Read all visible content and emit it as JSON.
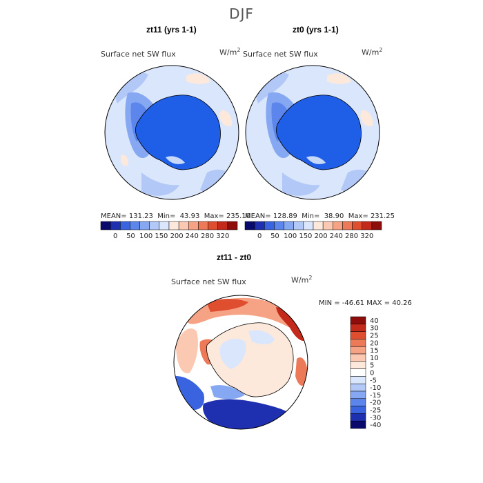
{
  "suptitle": "DJF",
  "panels": [
    {
      "title": "zt11 (yrs 1-1)",
      "variable": "Surface net SW flux",
      "units": "W/m",
      "units_sup": "2",
      "mean_label": "MEAN=",
      "mean": "131.23",
      "min_label": "Min=",
      "min": "43.93",
      "max_label": "Max=",
      "max": "235.10"
    },
    {
      "title": "zt0 (yrs 1-1)",
      "variable": "Surface net SW flux",
      "units": "W/m",
      "units_sup": "2",
      "mean_label": "MEAN=",
      "mean": "128.89",
      "min_label": "Min=",
      "min": "38.90",
      "max_label": "Max=",
      "max": "231.25"
    },
    {
      "title": "zt11 - zt0",
      "variable": "Surface net SW flux",
      "units": "W/m",
      "units_sup": "2",
      "minmax_text": "MIN = -46.61 MAX =  40.26"
    }
  ],
  "chart_data": [
    {
      "type": "heatmap",
      "title": "zt11 (yrs 1-1)",
      "projection": "south polar stereographic",
      "variable": "Surface net SW flux",
      "units": "W/m^2",
      "stats": {
        "mean": 131.23,
        "min": 43.93,
        "max": 235.1
      },
      "colorbar_ticks": [
        "0",
        "50",
        "100",
        "150",
        "200",
        "240",
        "280",
        "320"
      ],
      "colorbar_colors": [
        "#0a0a6e",
        "#1e2fb0",
        "#3a63e0",
        "#5c86ec",
        "#86a8f2",
        "#b2c8f6",
        "#d9e6fb",
        "#fde8dc",
        "#fbc9b2",
        "#f6a284",
        "#ec7a58",
        "#e04e30",
        "#c42a1a",
        "#8e0d0a"
      ],
      "dominant_value_continent_approx": 40,
      "dominant_value_ocean_approx": 150
    },
    {
      "type": "heatmap",
      "title": "zt0 (yrs 1-1)",
      "projection": "south polar stereographic",
      "variable": "Surface net SW flux",
      "units": "W/m^2",
      "stats": {
        "mean": 128.89,
        "min": 38.9,
        "max": 231.25
      },
      "colorbar_ticks": [
        "0",
        "50",
        "100",
        "150",
        "200",
        "240",
        "280",
        "320"
      ],
      "colorbar_colors": [
        "#0a0a6e",
        "#1e2fb0",
        "#3a63e0",
        "#5c86ec",
        "#86a8f2",
        "#b2c8f6",
        "#d9e6fb",
        "#fde8dc",
        "#fbc9b2",
        "#f6a284",
        "#ec7a58",
        "#e04e30",
        "#c42a1a",
        "#8e0d0a"
      ],
      "dominant_value_continent_approx": 40,
      "dominant_value_ocean_approx": 150
    },
    {
      "type": "heatmap",
      "title": "zt11 - zt0",
      "projection": "south polar stereographic",
      "variable": "Surface net SW flux",
      "units": "W/m^2",
      "stats": {
        "min": -46.61,
        "max": 40.26
      },
      "colorbar_ticks": [
        "40",
        "30",
        "25",
        "20",
        "15",
        "10",
        "5",
        "0",
        "-5",
        "-10",
        "-15",
        "-20",
        "-25",
        "-30",
        "-40"
      ],
      "colorbar_colors": [
        "#8e0d0a",
        "#c42a1a",
        "#e04e30",
        "#ec7a58",
        "#f6a284",
        "#fbc9b2",
        "#fde8dc",
        "#ffffff",
        "#d9e6fb",
        "#b2c8f6",
        "#86a8f2",
        "#5c86ec",
        "#3a63e0",
        "#1e2fb0",
        "#0a0a6e"
      ]
    }
  ]
}
